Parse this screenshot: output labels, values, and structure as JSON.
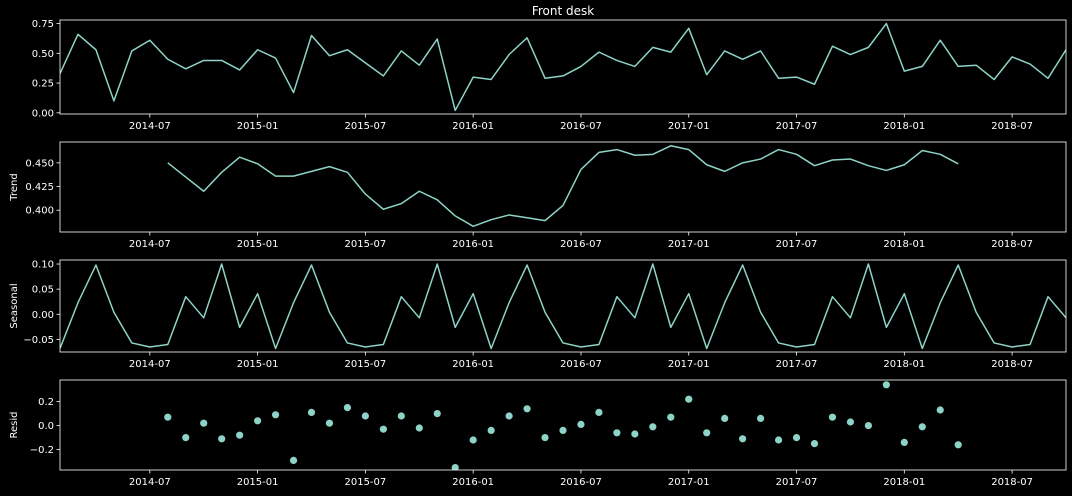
{
  "colors": {
    "background": "#000000",
    "foreground": "#ffffff",
    "series": "#8dd3c7"
  },
  "chart_data": [
    {
      "type": "line",
      "title": "Front desk",
      "ylabel": "",
      "x_start": "2014-02",
      "ylim": [
        -0.01,
        0.78
      ],
      "yticks": [
        0.0,
        0.25,
        0.5,
        0.75
      ],
      "ytick_labels": [
        "0.00",
        "0.25",
        "0.50",
        "0.75"
      ],
      "values": [
        0.33,
        0.66,
        0.53,
        0.1,
        0.52,
        0.61,
        0.45,
        0.37,
        0.44,
        0.44,
        0.36,
        0.53,
        0.46,
        0.17,
        0.65,
        0.48,
        0.53,
        0.42,
        0.31,
        0.52,
        0.4,
        0.62,
        0.02,
        0.3,
        0.28,
        0.49,
        0.63,
        0.29,
        0.31,
        0.39,
        0.51,
        0.44,
        0.39,
        0.55,
        0.51,
        0.71,
        0.32,
        0.52,
        0.45,
        0.52,
        0.29,
        0.3,
        0.24,
        0.56,
        0.49,
        0.55,
        0.75,
        0.35,
        0.39,
        0.61,
        0.39,
        0.4,
        0.28,
        0.47,
        0.41,
        0.29,
        0.53
      ]
    },
    {
      "type": "line",
      "title": "",
      "ylabel": "Trend",
      "x_start": "2014-08",
      "ylim": [
        0.377,
        0.472
      ],
      "yticks": [
        0.4,
        0.425,
        0.45
      ],
      "ytick_labels": [
        "0.400",
        "0.425",
        "0.450"
      ],
      "values": [
        0.45,
        0.435,
        0.42,
        0.44,
        0.456,
        0.449,
        0.436,
        0.436,
        0.441,
        0.446,
        0.44,
        0.417,
        0.401,
        0.407,
        0.42,
        0.411,
        0.394,
        0.383,
        0.39,
        0.395,
        0.392,
        0.389,
        0.405,
        0.443,
        0.461,
        0.464,
        0.458,
        0.459,
        0.468,
        0.464,
        0.448,
        0.441,
        0.45,
        0.454,
        0.464,
        0.459,
        0.447,
        0.453,
        0.454,
        0.447,
        0.442,
        0.448,
        0.463,
        0.459,
        0.449
      ]
    },
    {
      "type": "line",
      "title": "",
      "ylabel": "Seasonal",
      "x_start": "2014-02",
      "ylim": [
        -0.075,
        0.108
      ],
      "yticks": [
        -0.05,
        0.0,
        0.05,
        0.1
      ],
      "ytick_labels": [
        "−0.05",
        "0.00",
        "0.05",
        "0.10"
      ],
      "values": [
        -0.068,
        0.023,
        0.098,
        0.004,
        -0.057,
        -0.065,
        -0.06,
        0.035,
        -0.007,
        0.1,
        -0.026,
        0.041,
        -0.068,
        0.023,
        0.098,
        0.004,
        -0.057,
        -0.065,
        -0.06,
        0.035,
        -0.007,
        0.1,
        -0.026,
        0.041,
        -0.068,
        0.023,
        0.098,
        0.004,
        -0.057,
        -0.065,
        -0.06,
        0.035,
        -0.007,
        0.1,
        -0.026,
        0.041,
        -0.068,
        0.023,
        0.098,
        0.004,
        -0.057,
        -0.065,
        -0.06,
        0.035,
        -0.007,
        0.1,
        -0.026,
        0.041,
        -0.068,
        0.023,
        0.098,
        0.004,
        -0.057,
        -0.065,
        -0.06,
        0.035,
        -0.007
      ]
    },
    {
      "type": "scatter",
      "title": "",
      "ylabel": "Resid",
      "x_start": "2014-08",
      "ylim": [
        -0.37,
        0.38
      ],
      "yticks": [
        -0.2,
        0.0,
        0.2
      ],
      "ytick_labels": [
        "−0.2",
        "0.0",
        "0.2"
      ],
      "values": [
        0.07,
        -0.1,
        0.02,
        -0.11,
        -0.08,
        0.04,
        0.09,
        -0.29,
        0.11,
        0.02,
        0.15,
        0.08,
        -0.03,
        0.08,
        -0.02,
        0.1,
        -0.35,
        -0.12,
        -0.04,
        0.08,
        0.14,
        -0.1,
        -0.04,
        0.01,
        0.11,
        -0.06,
        -0.07,
        -0.01,
        0.07,
        0.22,
        -0.06,
        0.06,
        -0.11,
        0.06,
        -0.12,
        -0.1,
        -0.15,
        0.07,
        0.03,
        0.0,
        0.34,
        -0.14,
        -0.01,
        0.13,
        -0.16
      ]
    }
  ],
  "x_axis": {
    "range_months": [
      0,
      56
    ],
    "ticks": [
      {
        "label": "2014-07",
        "month_index": 5
      },
      {
        "label": "2015-01",
        "month_index": 11
      },
      {
        "label": "2015-07",
        "month_index": 17
      },
      {
        "label": "2016-01",
        "month_index": 23
      },
      {
        "label": "2016-07",
        "month_index": 29
      },
      {
        "label": "2017-01",
        "month_index": 35
      },
      {
        "label": "2017-07",
        "month_index": 41
      },
      {
        "label": "2018-01",
        "month_index": 47
      },
      {
        "label": "2018-07",
        "month_index": 53
      }
    ]
  }
}
